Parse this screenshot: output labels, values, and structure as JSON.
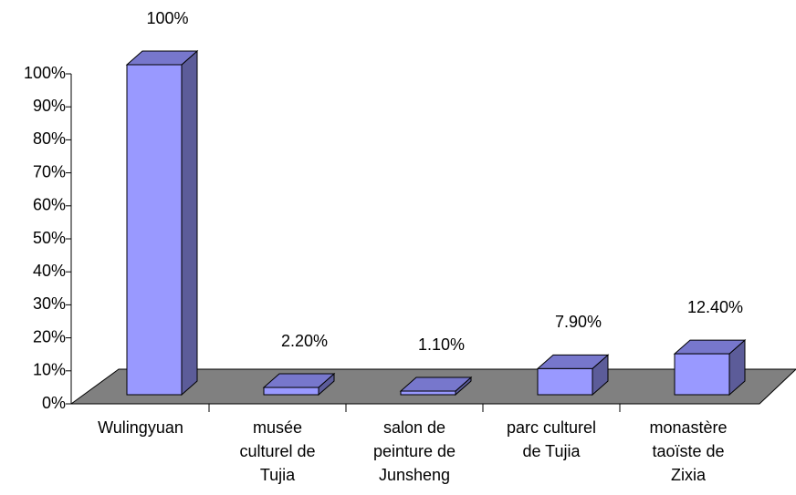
{
  "chart_data": {
    "type": "bar3d",
    "categories": [
      "Wulingyuan",
      "musée\nculturel de\nTujia",
      "salon de\npeinture de\nJunsheng",
      "parc culturel\nde Tujia",
      "monastère\ntaoïste de\nZixia"
    ],
    "values": [
      100,
      2.2,
      1.1,
      7.9,
      12.4
    ],
    "value_labels": [
      "100%",
      "2.20%",
      "1.10%",
      "7.90%",
      "12.40%"
    ],
    "color": "#9999ff",
    "ylim": [
      0,
      100
    ],
    "yticks": [
      {
        "value": 0,
        "label": "0%"
      },
      {
        "value": 10,
        "label": "10%"
      },
      {
        "value": 20,
        "label": "20%"
      },
      {
        "value": 30,
        "label": "30%"
      },
      {
        "value": 40,
        "label": "40%"
      },
      {
        "value": 50,
        "label": "50%"
      },
      {
        "value": 60,
        "label": "60%"
      },
      {
        "value": 70,
        "label": "70%"
      },
      {
        "value": 80,
        "label": "80%"
      },
      {
        "value": 90,
        "label": "90%"
      },
      {
        "value": 100,
        "label": "100%"
      }
    ]
  }
}
